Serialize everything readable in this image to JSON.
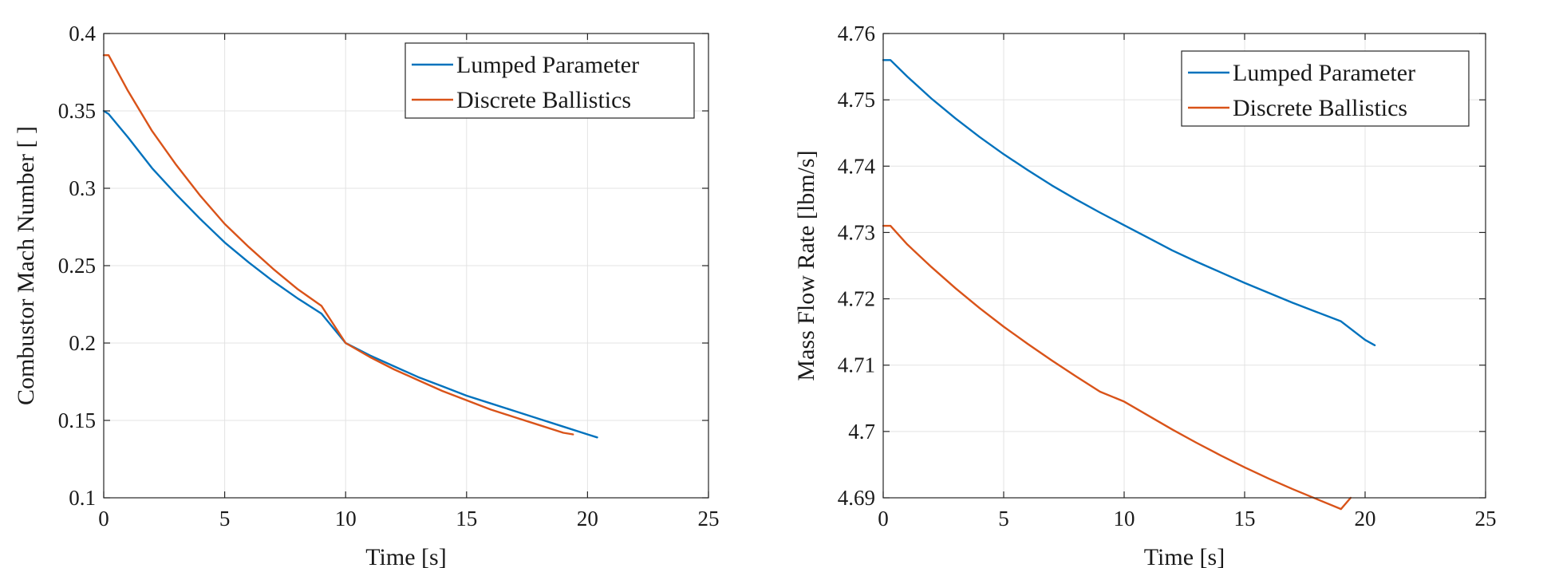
{
  "chart_data": [
    {
      "type": "line",
      "title": "",
      "xlabel": "Time [s]",
      "ylabel": "Combustor Mach Number [ ]",
      "xlim": [
        0,
        25
      ],
      "ylim": [
        0.1,
        0.4
      ],
      "xticks": [
        0,
        5,
        10,
        15,
        20,
        25
      ],
      "yticks": [
        0.1,
        0.15,
        0.2,
        0.25,
        0.3,
        0.35,
        0.4
      ],
      "xtick_labels": [
        "0",
        "5",
        "10",
        "15",
        "20",
        "25"
      ],
      "ytick_labels": [
        "0.1",
        "0.15",
        "0.2",
        "0.25",
        "0.3",
        "0.35",
        "0.4"
      ],
      "grid": true,
      "legend_position": "top-right",
      "series": [
        {
          "name": "Lumped Parameter",
          "color": "#0072BD",
          "x": [
            0,
            0.2,
            1,
            2,
            3,
            4,
            5,
            6,
            7,
            8,
            9,
            10,
            11,
            12,
            13,
            14,
            15,
            16,
            17,
            18,
            19,
            20,
            20.4
          ],
          "y": [
            0.35,
            0.348,
            0.333,
            0.313,
            0.296,
            0.28,
            0.265,
            0.252,
            0.24,
            0.229,
            0.219,
            0.2,
            0.192,
            0.185,
            0.178,
            0.172,
            0.166,
            0.161,
            0.156,
            0.151,
            0.146,
            0.141,
            0.139
          ]
        },
        {
          "name": "Discrete Ballistics",
          "color": "#D95319",
          "x": [
            0,
            0.2,
            1,
            2,
            3,
            4,
            5,
            6,
            7,
            8,
            9,
            10,
            11,
            12,
            13,
            14,
            15,
            16,
            17,
            18,
            19,
            19.4
          ],
          "y": [
            0.386,
            0.386,
            0.363,
            0.337,
            0.315,
            0.295,
            0.277,
            0.262,
            0.248,
            0.235,
            0.224,
            0.2,
            0.191,
            0.183,
            0.176,
            0.169,
            0.163,
            0.157,
            0.152,
            0.147,
            0.142,
            0.141
          ]
        }
      ]
    },
    {
      "type": "line",
      "title": "",
      "xlabel": "Time [s]",
      "ylabel": "Mass Flow Rate [lbm/s]",
      "xlim": [
        0,
        25
      ],
      "ylim": [
        4.69,
        4.76
      ],
      "xticks": [
        0,
        5,
        10,
        15,
        20,
        25
      ],
      "yticks": [
        4.69,
        4.7,
        4.71,
        4.72,
        4.73,
        4.74,
        4.75,
        4.76
      ],
      "xtick_labels": [
        "0",
        "5",
        "10",
        "15",
        "20",
        "25"
      ],
      "ytick_labels": [
        "4.69",
        "4.7",
        "4.71",
        "4.72",
        "4.73",
        "4.74",
        "4.75",
        "4.76"
      ],
      "grid": true,
      "legend_position": "top-right",
      "series": [
        {
          "name": "Lumped Parameter",
          "color": "#0072BD",
          "x": [
            0,
            0.3,
            1,
            2,
            3,
            4,
            5,
            6,
            7,
            8,
            9,
            10,
            11,
            12,
            13,
            14,
            15,
            16,
            17,
            18,
            19,
            20,
            20.4
          ],
          "y": [
            4.756,
            4.756,
            4.7535,
            4.7502,
            4.7472,
            4.7444,
            4.7418,
            4.7394,
            4.7371,
            4.735,
            4.733,
            4.7311,
            4.7292,
            4.7273,
            4.7256,
            4.724,
            4.7224,
            4.7209,
            4.7194,
            4.718,
            4.7166,
            4.7138,
            4.713
          ]
        },
        {
          "name": "Discrete Ballistics",
          "color": "#D95319",
          "x": [
            0,
            0.3,
            1,
            2,
            3,
            4,
            5,
            6,
            7,
            8,
            9,
            10,
            11,
            12,
            13,
            14,
            15,
            16,
            17,
            18,
            19,
            19.4
          ],
          "y": [
            4.731,
            4.731,
            4.7282,
            4.7248,
            4.7216,
            4.7186,
            4.7158,
            4.7132,
            4.7107,
            4.7083,
            4.706,
            4.7045,
            4.7024,
            4.7003,
            4.6983,
            4.6964,
            4.6946,
            4.6929,
            4.6913,
            4.6898,
            4.6883,
            4.69
          ]
        }
      ]
    }
  ]
}
